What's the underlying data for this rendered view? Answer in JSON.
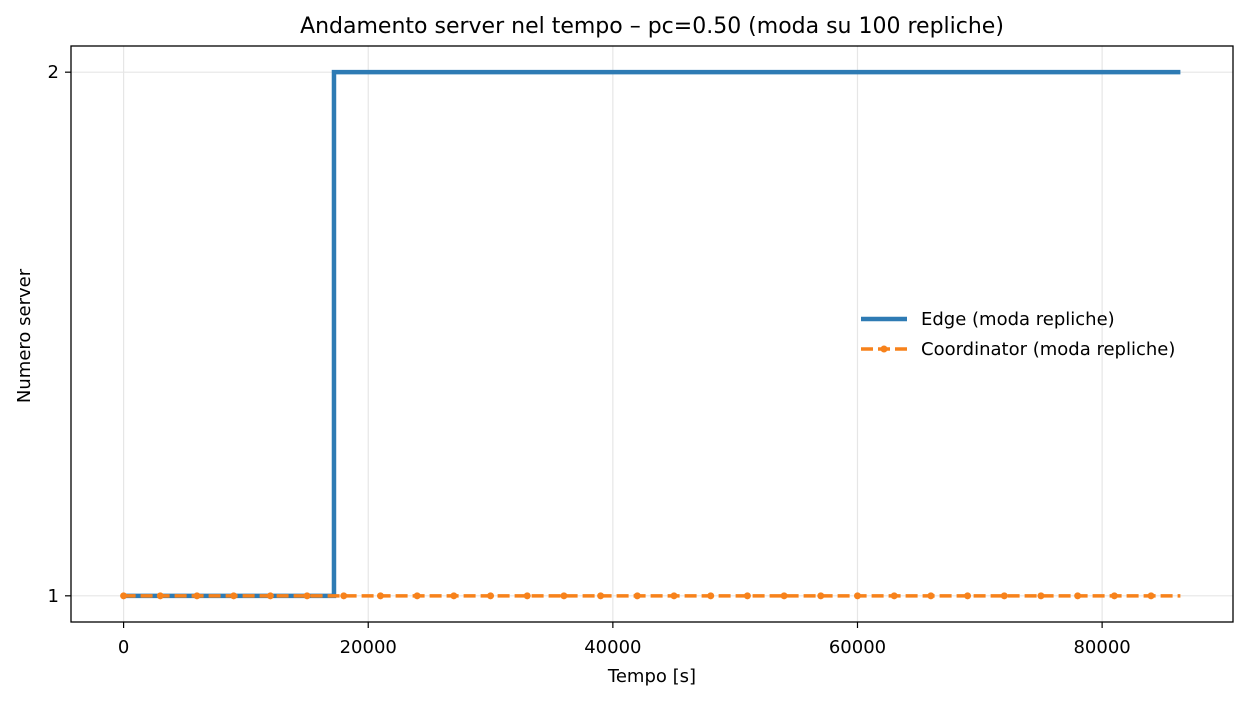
{
  "chart_data": {
    "type": "line",
    "title": "Andamento server nel tempo – pc=0.50 (moda su 100 repliche)",
    "xlabel": "Tempo [s]",
    "ylabel": "Numero server",
    "xlim": [
      -4300,
      90700
    ],
    "ylim": [
      0.95,
      2.05
    ],
    "x_ticks": [
      0,
      20000,
      40000,
      60000,
      80000
    ],
    "x_tick_labels": [
      "0",
      "20000",
      "40000",
      "60000",
      "80000"
    ],
    "y_ticks": [
      1,
      2
    ],
    "y_tick_labels": [
      "1",
      "2"
    ],
    "grid": true,
    "legend_position": "center-right",
    "series": [
      {
        "name": "Edge (moda repliche)",
        "style": "step-solid",
        "color": "#2e7bb4",
        "x": [
          0,
          17200,
          17200,
          86400
        ],
        "y": [
          1,
          1,
          2,
          2
        ]
      },
      {
        "name": "Coordinator (moda repliche)",
        "style": "dashed-dot-markers",
        "color": "#f7821b",
        "x": [
          0,
          3000,
          6000,
          9000,
          12000,
          15000,
          18000,
          21000,
          24000,
          27000,
          30000,
          33000,
          36000,
          39000,
          42000,
          45000,
          48000,
          51000,
          54000,
          57000,
          60000,
          63000,
          66000,
          69000,
          72000,
          75000,
          78000,
          81000,
          84000,
          86400
        ],
        "y": [
          1,
          1,
          1,
          1,
          1,
          1,
          1,
          1,
          1,
          1,
          1,
          1,
          1,
          1,
          1,
          1,
          1,
          1,
          1,
          1,
          1,
          1,
          1,
          1,
          1,
          1,
          1,
          1,
          1,
          1
        ],
        "markers_until_index": 28
      }
    ]
  }
}
